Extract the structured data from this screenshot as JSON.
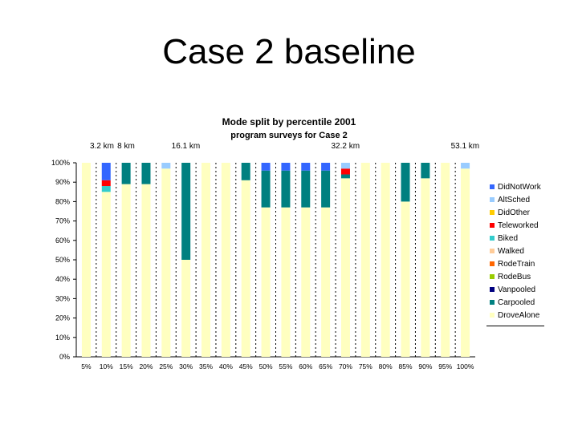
{
  "slide": {
    "title": "Case 2 baseline"
  },
  "chart_data": {
    "type": "bar",
    "stacked": true,
    "title": "Mode split by percentile 2001",
    "subtitle": "program surveys for Case 2",
    "distance_labels": [
      {
        "text": "3.2 km",
        "category": "10%"
      },
      {
        "text": "8 km",
        "category": "15%"
      },
      {
        "text": "16.1 km",
        "category": "30%"
      },
      {
        "text": "32.2 km",
        "category": "70%"
      },
      {
        "text": "53.1 km",
        "category": "100%"
      }
    ],
    "categories": [
      "5%",
      "10%",
      "15%",
      "20%",
      "25%",
      "30%",
      "35%",
      "40%",
      "45%",
      "50%",
      "55%",
      "60%",
      "65%",
      "70%",
      "75%",
      "80%",
      "85%",
      "90%",
      "95%",
      "100%"
    ],
    "ylim": [
      0,
      100
    ],
    "yticks": [
      "0%",
      "10%",
      "20%",
      "30%",
      "40%",
      "50%",
      "60%",
      "70%",
      "80%",
      "90%",
      "100%"
    ],
    "grid": false,
    "legend_position": "right",
    "series": [
      {
        "name": "DroveAlone",
        "color": "#ffffc0",
        "values": [
          100,
          85,
          89,
          89,
          97,
          50,
          100,
          100,
          91,
          77,
          77,
          77,
          77,
          92,
          100,
          100,
          80,
          92,
          100,
          97
        ]
      },
      {
        "name": "Carpooled",
        "color": "#008080",
        "values": [
          0,
          0,
          11,
          11,
          0,
          50,
          0,
          0,
          9,
          19,
          19,
          19,
          19,
          2,
          0,
          0,
          20,
          8,
          0,
          0
        ]
      },
      {
        "name": "Vanpooled",
        "color": "#000080",
        "values": [
          0,
          0,
          0,
          0,
          0,
          0,
          0,
          0,
          0,
          0,
          0,
          0,
          0,
          0,
          0,
          0,
          0,
          0,
          0,
          0
        ]
      },
      {
        "name": "RodeBus",
        "color": "#99cc00",
        "values": [
          0,
          0,
          0,
          0,
          0,
          0,
          0,
          0,
          0,
          0,
          0,
          0,
          0,
          0,
          0,
          0,
          0,
          0,
          0,
          0
        ]
      },
      {
        "name": "RodeTrain",
        "color": "#ff6600",
        "values": [
          0,
          0,
          0,
          0,
          0,
          0,
          0,
          0,
          0,
          0,
          0,
          0,
          0,
          0,
          0,
          0,
          0,
          0,
          0,
          0
        ]
      },
      {
        "name": "Walked",
        "color": "#ffcc99",
        "values": [
          0,
          0,
          0,
          0,
          0,
          0,
          0,
          0,
          0,
          0,
          0,
          0,
          0,
          0,
          0,
          0,
          0,
          0,
          0,
          0
        ]
      },
      {
        "name": "Biked",
        "color": "#33cccc",
        "values": [
          0,
          3,
          0,
          0,
          0,
          0,
          0,
          0,
          0,
          0,
          0,
          0,
          0,
          0,
          0,
          0,
          0,
          0,
          0,
          0
        ]
      },
      {
        "name": "Teleworked",
        "color": "#ff0000",
        "values": [
          0,
          3,
          0,
          0,
          0,
          0,
          0,
          0,
          0,
          0,
          0,
          0,
          0,
          3,
          0,
          0,
          0,
          0,
          0,
          0
        ]
      },
      {
        "name": "DidOther",
        "color": "#ffcc00",
        "values": [
          0,
          0,
          0,
          0,
          0,
          0,
          0,
          0,
          0,
          0,
          0,
          0,
          0,
          0,
          0,
          0,
          0,
          0,
          0,
          0
        ]
      },
      {
        "name": "AltSched",
        "color": "#99ccff",
        "values": [
          0,
          0,
          0,
          0,
          3,
          0,
          0,
          0,
          0,
          0,
          0,
          0,
          0,
          3,
          0,
          0,
          0,
          0,
          0,
          3
        ]
      },
      {
        "name": "DidNotWork",
        "color": "#3366ff",
        "values": [
          0,
          9,
          0,
          0,
          0,
          0,
          0,
          0,
          0,
          4,
          4,
          4,
          4,
          0,
          0,
          0,
          0,
          0,
          0,
          0
        ]
      }
    ],
    "legend_order": [
      "DidNotWork",
      "AltSched",
      "DidOther",
      "Teleworked",
      "Biked",
      "Walked",
      "RodeTrain",
      "RodeBus",
      "Vanpooled",
      "Carpooled",
      "DroveAlone"
    ]
  }
}
